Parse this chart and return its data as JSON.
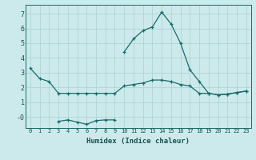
{
  "xlabel": "Humidex (Indice chaleur)",
  "x": [
    0,
    1,
    2,
    3,
    4,
    5,
    6,
    7,
    8,
    9,
    10,
    11,
    12,
    13,
    14,
    15,
    16,
    17,
    18,
    19,
    20,
    21,
    22,
    23
  ],
  "line1_y": [
    3.3,
    2.6,
    2.4,
    1.6,
    1.6,
    1.6,
    1.6,
    1.6,
    1.6,
    1.6,
    2.1,
    2.2,
    2.3,
    2.5,
    2.5,
    2.4,
    2.2,
    2.1,
    1.6,
    1.6,
    1.5,
    1.55,
    1.65,
    1.75
  ],
  "line2_x": [
    3,
    4,
    5,
    6,
    7,
    8,
    9
  ],
  "line2_y": [
    -0.3,
    -0.2,
    -0.35,
    -0.5,
    -0.25,
    -0.2,
    -0.2
  ],
  "line3_x": [
    10,
    11,
    12,
    13,
    14,
    15,
    16,
    17,
    18,
    19,
    20,
    21,
    22,
    23
  ],
  "line3_y": [
    4.4,
    5.3,
    5.85,
    6.1,
    7.1,
    6.3,
    5.0,
    3.2,
    2.4,
    1.6,
    1.5,
    1.55,
    1.65,
    1.75
  ],
  "ylim": [
    -0.75,
    7.6
  ],
  "xlim": [
    -0.5,
    23.5
  ],
  "yticks": [
    0,
    1,
    2,
    3,
    4,
    5,
    6,
    7
  ],
  "ytick_labels": [
    "-0",
    "1",
    "2",
    "3",
    "4",
    "5",
    "6",
    "7"
  ],
  "bg_color": "#cceaeb",
  "grid_color": "#b0d4d4",
  "line_color": "#1a6b6b",
  "font_color": "#1a5050",
  "marker": "+"
}
